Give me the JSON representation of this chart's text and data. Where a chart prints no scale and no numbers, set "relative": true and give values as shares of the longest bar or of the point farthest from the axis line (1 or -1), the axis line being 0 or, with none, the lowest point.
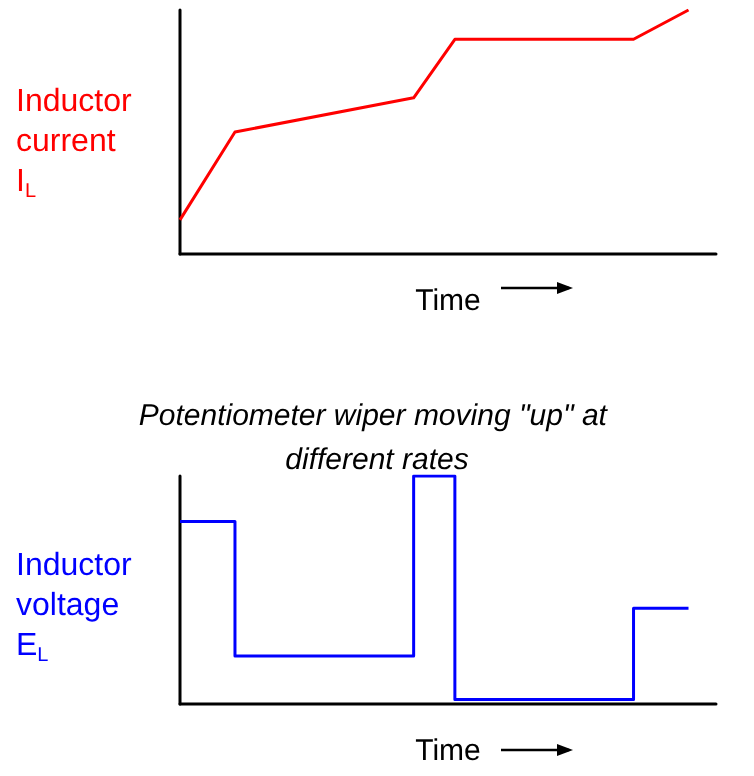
{
  "chart_data": [
    {
      "type": "line",
      "ylabel": "Inductor\ncurrent\nI$_{L}$",
      "xlabel": "Time",
      "relative": true,
      "color": "#ff0000",
      "categories": [
        null,
        null,
        null,
        null,
        null,
        null,
        null,
        null,
        null,
        null,
        null,
        null,
        null,
        null,
        null,
        null,
        null,
        null,
        null,
        null,
        null,
        null,
        null,
        null,
        null,
        null,
        null,
        null,
        null,
        null,
        null,
        null,
        null,
        null,
        null,
        null,
        null,
        null,
        null,
        null
      ],
      "values": [
        0.14,
        null,
        null,
        null,
        0.5,
        null,
        null,
        null,
        null,
        null,
        null,
        null,
        null,
        null,
        null,
        null,
        null,
        0.64,
        null,
        null,
        0.88,
        null,
        null,
        null,
        null,
        null,
        null,
        null,
        null,
        null,
        null,
        null,
        null,
        0.88,
        null,
        null,
        null,
        1,
        null,
        null
      ]
    },
    {
      "type": "step",
      "title": "Potentiometer wiper moving \"up\" at different rates",
      "ylabel": "Inductor\nvoltage\nE$_{L}$",
      "xlabel": "Time",
      "relative": true,
      "color": "#0000ff",
      "categories": [
        null,
        null,
        null,
        null,
        null,
        null,
        null,
        null,
        null,
        null,
        null,
        null,
        null,
        null,
        null,
        null,
        null,
        null,
        null,
        null,
        null,
        null,
        null,
        null,
        null,
        null,
        null,
        null,
        null,
        null,
        null,
        null,
        null,
        null,
        null,
        null,
        null,
        null,
        null,
        null
      ],
      "values": [
        0.8,
        null,
        null,
        null,
        0.21,
        null,
        null,
        null,
        null,
        null,
        null,
        null,
        null,
        null,
        null,
        null,
        null,
        1,
        null,
        null,
        0.02,
        null,
        null,
        null,
        null,
        null,
        null,
        null,
        null,
        null,
        null,
        null,
        null,
        0.42,
        null,
        null,
        null,
        0.42,
        null,
        null
      ]
    }
  ]
}
